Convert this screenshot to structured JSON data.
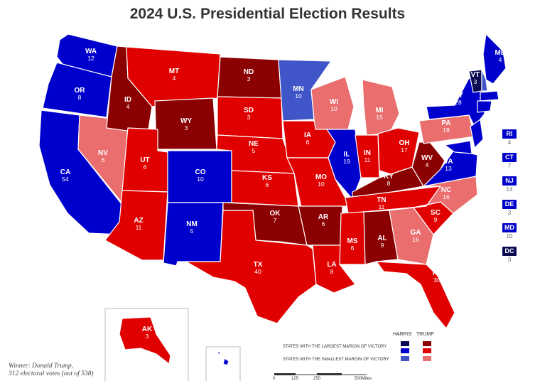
{
  "title": "2024 U.S. Presidential Election Results",
  "colors": {
    "harris_large": "#0a0a52",
    "harris": "#0000cc",
    "harris_small": "#3f55c8",
    "trump_large": "#8b0000",
    "trump": "#e00000",
    "trump_small": "#ea6e6e"
  },
  "states": [
    {
      "abbr": "WA",
      "ev": "12",
      "cat": "harris"
    },
    {
      "abbr": "OR",
      "ev": "8",
      "cat": "harris"
    },
    {
      "abbr": "CA",
      "ev": "54",
      "cat": "harris"
    },
    {
      "abbr": "NV",
      "ev": "6",
      "cat": "trump_small"
    },
    {
      "abbr": "ID",
      "ev": "4",
      "cat": "trump_large"
    },
    {
      "abbr": "MT",
      "ev": "4",
      "cat": "trump"
    },
    {
      "abbr": "WY",
      "ev": "3",
      "cat": "trump_large"
    },
    {
      "abbr": "UT",
      "ev": "6",
      "cat": "trump"
    },
    {
      "abbr": "AZ",
      "ev": "11",
      "cat": "trump"
    },
    {
      "abbr": "CO",
      "ev": "10",
      "cat": "harris"
    },
    {
      "abbr": "NM",
      "ev": "5",
      "cat": "harris"
    },
    {
      "abbr": "ND",
      "ev": "3",
      "cat": "trump_large"
    },
    {
      "abbr": "SD",
      "ev": "3",
      "cat": "trump"
    },
    {
      "abbr": "NE",
      "ev": "5",
      "cat": "trump"
    },
    {
      "abbr": "KS",
      "ev": "6",
      "cat": "trump"
    },
    {
      "abbr": "OK",
      "ev": "7",
      "cat": "trump_large"
    },
    {
      "abbr": "TX",
      "ev": "40",
      "cat": "trump"
    },
    {
      "abbr": "MN",
      "ev": "10",
      "cat": "harris_small"
    },
    {
      "abbr": "IA",
      "ev": "6",
      "cat": "trump"
    },
    {
      "abbr": "MO",
      "ev": "10",
      "cat": "trump"
    },
    {
      "abbr": "AR",
      "ev": "6",
      "cat": "trump_large"
    },
    {
      "abbr": "LA",
      "ev": "8",
      "cat": "trump"
    },
    {
      "abbr": "WI",
      "ev": "10",
      "cat": "trump_small"
    },
    {
      "abbr": "IL",
      "ev": "19",
      "cat": "harris"
    },
    {
      "abbr": "MI",
      "ev": "15",
      "cat": "trump_small"
    },
    {
      "abbr": "IN",
      "ev": "11",
      "cat": "trump"
    },
    {
      "abbr": "OH",
      "ev": "17",
      "cat": "trump"
    },
    {
      "abbr": "KY",
      "ev": "8",
      "cat": "trump_large"
    },
    {
      "abbr": "TN",
      "ev": "11",
      "cat": "trump"
    },
    {
      "abbr": "MS",
      "ev": "6",
      "cat": "trump"
    },
    {
      "abbr": "AL",
      "ev": "9",
      "cat": "trump_large"
    },
    {
      "abbr": "GA",
      "ev": "16",
      "cat": "trump_small"
    },
    {
      "abbr": "FL",
      "ev": "30",
      "cat": "trump"
    },
    {
      "abbr": "SC",
      "ev": "9",
      "cat": "trump"
    },
    {
      "abbr": "NC",
      "ev": "16",
      "cat": "trump_small"
    },
    {
      "abbr": "VA",
      "ev": "13",
      "cat": "harris"
    },
    {
      "abbr": "WV",
      "ev": "4",
      "cat": "trump_large"
    },
    {
      "abbr": "PA",
      "ev": "19",
      "cat": "trump_small"
    },
    {
      "abbr": "NY",
      "ev": "28",
      "cat": "harris"
    },
    {
      "abbr": "VT",
      "ev": "3",
      "cat": "harris_large"
    },
    {
      "abbr": "ME",
      "ev": "4",
      "cat": "harris"
    },
    {
      "abbr": "AK",
      "ev": "3",
      "cat": "trump"
    }
  ],
  "side_states": [
    {
      "abbr": "RI",
      "ev": "4",
      "cat": "harris"
    },
    {
      "abbr": "CT",
      "ev": "7",
      "cat": "harris"
    },
    {
      "abbr": "NJ",
      "ev": "14",
      "cat": "harris"
    },
    {
      "abbr": "DE",
      "ev": "3",
      "cat": "harris"
    },
    {
      "abbr": "MD",
      "ev": "10",
      "cat": "harris"
    },
    {
      "abbr": "DC",
      "ev": "3",
      "cat": "harris_large"
    }
  ],
  "legend": {
    "harris_label": "HARRIS",
    "trump_label": "TRUMP",
    "largest_label": "STATES WITH THE LARGEST MARGIN OF VICTORY",
    "smallest_label": "STATES WITH THE SMALLEST MARGIN OF VICTORY"
  },
  "scale": {
    "ticks": [
      "0",
      "125",
      "250",
      "500Miles"
    ]
  },
  "winner": {
    "line1": "Winner: Donald Trump,",
    "line2": "312 electoral votes (out of 538)"
  }
}
